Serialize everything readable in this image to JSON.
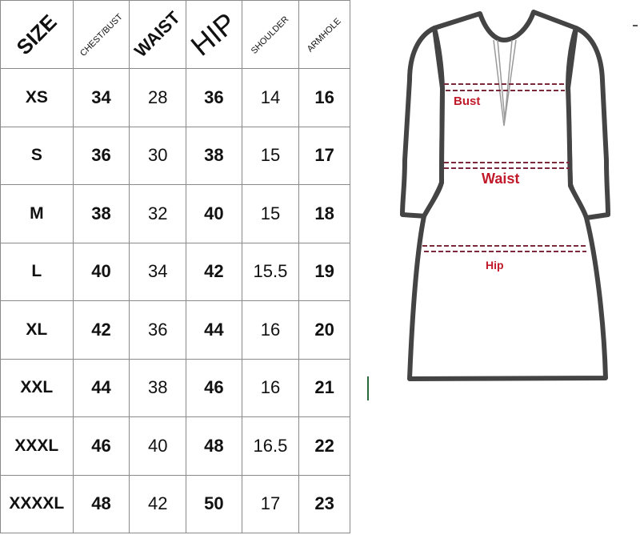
{
  "table": {
    "headers": [
      "SIZE",
      "CHEST/BUST",
      "WAIST",
      "HIP",
      "SHOULDER",
      "ARMHOLE"
    ],
    "rows": [
      [
        "XS",
        "34",
        "28",
        "36",
        "14",
        "16"
      ],
      [
        "S",
        "36",
        "30",
        "38",
        "15",
        "17"
      ],
      [
        "M",
        "38",
        "32",
        "40",
        "15",
        "18"
      ],
      [
        "L",
        "40",
        "34",
        "42",
        "15.5",
        "19"
      ],
      [
        "XL",
        "42",
        "36",
        "44",
        "16",
        "20"
      ],
      [
        "XXL",
        "44",
        "38",
        "46",
        "16",
        "21"
      ],
      [
        "XXXL",
        "46",
        "40",
        "48",
        "16.5",
        "22"
      ],
      [
        "XXXXL",
        "48",
        "42",
        "50",
        "17",
        "23"
      ]
    ]
  },
  "diagram": {
    "labels": {
      "bust": "Bust",
      "waist": "Waist",
      "hip": "Hip"
    },
    "label_color": "#c01a2a",
    "outline_color": "#444444"
  }
}
